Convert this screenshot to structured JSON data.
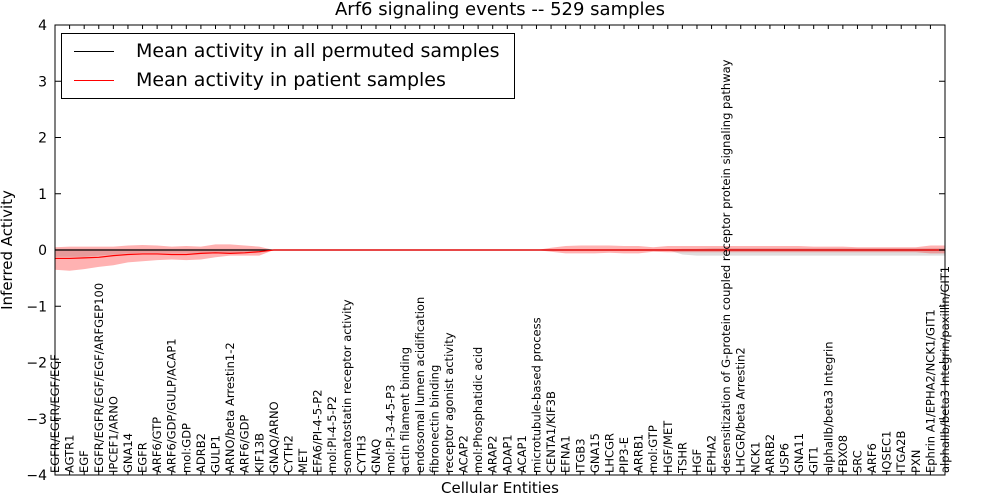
{
  "chart_data": {
    "type": "line",
    "title": "Arf6 signaling events -- 529 samples",
    "xlabel": "Cellular Entities",
    "ylabel": "Inferred Activity",
    "ylim": [
      -4,
      4
    ],
    "yticks": [
      -4,
      -3,
      -2,
      -1,
      0,
      1,
      2,
      3,
      4
    ],
    "ytick_labels": [
      "−4",
      "−3",
      "−2",
      "−1",
      "0",
      "1",
      "2",
      "3",
      "4"
    ],
    "categories": [
      "EGFR/EGFR/EGF/EGF",
      "AGTR1",
      "EGF",
      "EGFR/EGFR/EGF/EGF/ARFGEP100",
      "IPCEF1/ARNO",
      "GNA14",
      "EGFR",
      "ARF6/GTP",
      "ARF6/GDP/GULP/ACAP1",
      "mol:GDP",
      "ADRB2",
      "GULP1",
      "ARNO/beta Arrestin1-2",
      "ARF6/GDP",
      "KIF13B",
      "GNAQ/ARNO",
      "CYTH2",
      "MET",
      "EFA6/PI-4-5-P2",
      "mol:PI-4-5-P2",
      "somatostatin receptor activity",
      "CYTH3",
      "GNAQ",
      "mol:PI-3-4-5-P3",
      "actin filament binding",
      "endosomal lumen acidification",
      "fibronectin binding",
      "receptor agonist activity",
      "ACAP2",
      "mol:Phosphatidic acid",
      "ARAP2",
      "ADAP1",
      "ACAP1",
      "microtubule-based process",
      "CENTA1/KIF3B",
      "EFNA1",
      "ITGB3",
      "GNA15",
      "LHCGR",
      "PIP3-E",
      "ARRB1",
      "mol:GTP",
      "HGF/MET",
      "TSHR",
      "HGF",
      "EPHA2",
      "desensitization of G-protein coupled receptor protein signaling pathway",
      "LHCGR/beta Arrestin2",
      "NCK1",
      "ARRB2",
      "USP6",
      "GNA11",
      "GIT1",
      "alphaIIb/beta3 Integrin",
      "FBXO8",
      "SRC",
      "ARF6",
      "IQSEC1",
      "ITGA2B",
      "PXN",
      "Ephrin A1/EPHA2/NCK1/GIT1",
      "alphaIIb/beta3 Integrin/paxillin/GIT1"
    ],
    "series": [
      {
        "name": "Mean activity in all permuted samples",
        "color": "#000000",
        "values": [
          0,
          0,
          0,
          0,
          0,
          0,
          0,
          0,
          0,
          0,
          0,
          0,
          0,
          0,
          0,
          0,
          0,
          0,
          0,
          0,
          0,
          0,
          0,
          0,
          0,
          0,
          0,
          0,
          0,
          0,
          0,
          0,
          0,
          0,
          0,
          0,
          0,
          0,
          0,
          0,
          0,
          0,
          0,
          0,
          0,
          0,
          0,
          0,
          0,
          0,
          0,
          0,
          0,
          0,
          0,
          0,
          0,
          0,
          0,
          0,
          0,
          0
        ],
        "band_upper": [
          0.02,
          0.02,
          0.02,
          0.02,
          0.02,
          0.02,
          0.02,
          0.02,
          0.02,
          0.02,
          0.02,
          0.02,
          0.02,
          0.02,
          0.02,
          0,
          0,
          0,
          0,
          0,
          0,
          0,
          0,
          0,
          0,
          0,
          0,
          0,
          0,
          0,
          0,
          0,
          0,
          0,
          0,
          0,
          0,
          0,
          0,
          0,
          0,
          0,
          0,
          0.02,
          0.02,
          0.03,
          0.03,
          0.03,
          0.03,
          0.03,
          0.03,
          0.03,
          0.03,
          0.03,
          0.03,
          0.03,
          0.03,
          0.03,
          0.03,
          0.03,
          0.03,
          0.03
        ],
        "band_lower": [
          -0.12,
          -0.12,
          -0.12,
          -0.1,
          -0.08,
          -0.06,
          -0.05,
          -0.05,
          -0.05,
          -0.05,
          -0.05,
          -0.05,
          -0.05,
          -0.05,
          -0.05,
          0,
          0,
          0,
          0,
          0,
          0,
          0,
          0,
          0,
          0,
          0,
          0,
          0,
          0,
          0,
          0,
          0,
          0,
          0,
          0,
          0,
          0,
          0,
          0,
          0,
          0,
          0,
          0,
          -0.08,
          -0.1,
          -0.1,
          -0.1,
          -0.1,
          -0.1,
          -0.1,
          -0.1,
          -0.1,
          -0.1,
          -0.1,
          -0.1,
          -0.1,
          -0.1,
          -0.1,
          -0.1,
          -0.1,
          -0.1,
          -0.1
        ]
      },
      {
        "name": "Mean activity in patient samples",
        "color": "#ff0000",
        "values": [
          -0.15,
          -0.15,
          -0.14,
          -0.13,
          -0.1,
          -0.08,
          -0.07,
          -0.07,
          -0.08,
          -0.08,
          -0.06,
          -0.05,
          -0.06,
          -0.05,
          -0.03,
          0,
          0,
          0,
          0,
          0,
          0,
          0,
          0,
          0,
          0,
          0,
          0,
          0,
          0,
          0,
          0,
          0,
          0,
          0,
          0,
          0,
          0,
          0,
          0,
          0,
          0,
          0,
          0,
          0,
          0,
          0,
          0,
          0,
          0,
          0,
          0,
          0,
          0,
          0,
          0,
          0,
          0,
          0,
          0,
          0,
          0,
          0
        ],
        "band_upper": [
          0.05,
          0.06,
          0.06,
          0.06,
          0.06,
          0.08,
          0.09,
          0.08,
          0.06,
          0.07,
          0.06,
          0.1,
          0.1,
          0.08,
          0.06,
          0,
          0,
          0,
          0,
          0,
          0,
          0,
          0,
          0,
          0,
          0,
          0,
          0,
          0,
          0,
          0,
          0,
          0,
          0,
          0.04,
          0.07,
          0.08,
          0.08,
          0.08,
          0.07,
          0.07,
          0.05,
          0.07,
          0.07,
          0.07,
          0.07,
          0.07,
          0.07,
          0.07,
          0.07,
          0.07,
          0.07,
          0.06,
          0.06,
          0.06,
          0.05,
          0.05,
          0.05,
          0.05,
          0.05,
          0.08,
          0.08
        ],
        "band_lower": [
          -0.35,
          -0.37,
          -0.34,
          -0.3,
          -0.27,
          -0.22,
          -0.2,
          -0.18,
          -0.17,
          -0.18,
          -0.17,
          -0.13,
          -0.1,
          -0.1,
          -0.1,
          0,
          0,
          0,
          0,
          0,
          0,
          0,
          0,
          0,
          0,
          0,
          0,
          0,
          0,
          0,
          0,
          0,
          0,
          0,
          -0.03,
          -0.06,
          -0.06,
          -0.06,
          -0.05,
          -0.06,
          -0.06,
          -0.03,
          -0.04,
          -0.04,
          -0.04,
          -0.04,
          -0.04,
          -0.04,
          -0.04,
          -0.04,
          -0.04,
          -0.04,
          -0.04,
          -0.04,
          -0.04,
          -0.04,
          -0.04,
          -0.04,
          -0.04,
          -0.04,
          -0.06,
          -0.06
        ]
      }
    ],
    "legend_position": "top-left"
  }
}
